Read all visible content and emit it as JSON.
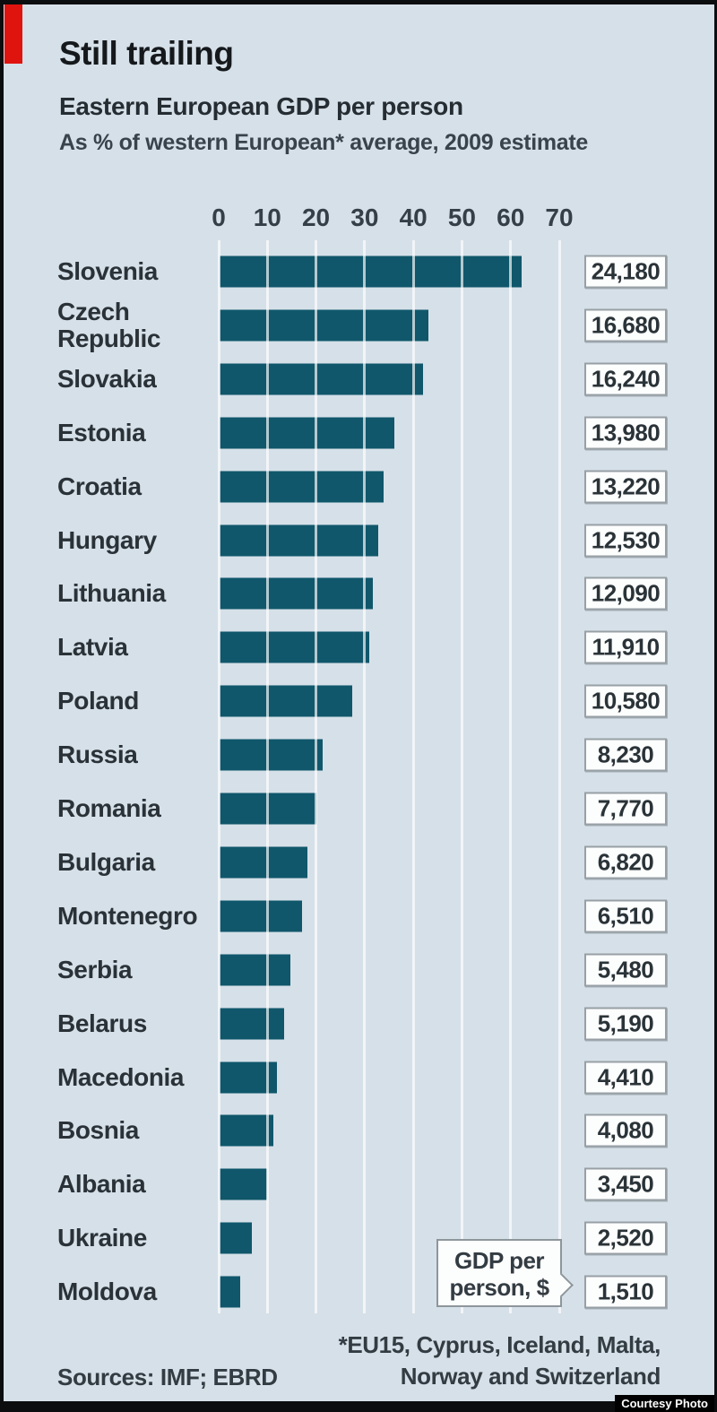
{
  "header": {
    "title": "Still trailing",
    "subtitle": "Eastern European GDP per person",
    "note": "As % of western European* average, 2009 estimate"
  },
  "chart_data": {
    "type": "bar",
    "orientation": "horizontal",
    "title": "Still trailing",
    "subtitle": "Eastern European GDP per person",
    "unit": "% of western European average, 2009 estimate",
    "xlim": [
      0,
      70
    ],
    "x_ticks": [
      0,
      10,
      20,
      30,
      40,
      50,
      60,
      70
    ],
    "grid": "on",
    "categories": [
      "Slovenia",
      "Czech Republic",
      "Slovakia",
      "Estonia",
      "Croatia",
      "Hungary",
      "Lithuania",
      "Latvia",
      "Poland",
      "Russia",
      "Romania",
      "Bulgaria",
      "Montenegro",
      "Serbia",
      "Belarus",
      "Macedonia",
      "Bosnia",
      "Albania",
      "Ukraine",
      "Moldova"
    ],
    "values_pct_of_western_avg": [
      62,
      43,
      41.8,
      36,
      33.8,
      32.6,
      31.5,
      30.7,
      27.2,
      21.2,
      19.9,
      18,
      16.9,
      14.5,
      13.3,
      11.8,
      11,
      9.8,
      6.6,
      4.3
    ],
    "gdp_per_person_usd": [
      "24,180",
      "16,680",
      "16,240",
      "13,980",
      "13,220",
      "12,530",
      "12,090",
      "11,910",
      "10,580",
      "8,230",
      "7,770",
      "6,820",
      "6,510",
      "5,480",
      "5,190",
      "4,410",
      "4,080",
      "3,450",
      "2,520",
      "1,510"
    ],
    "callout": {
      "line1": "GDP per",
      "line2": "person, $"
    }
  },
  "footer": {
    "sources": "Sources: IMF; EBRD",
    "footnote_line1": "*EU15, Cyprus, Iceland, Malta,",
    "footnote_line2": "Norway and Switzerland",
    "credit": "Courtesy Photo"
  },
  "colors": {
    "background": "#d6e0e8",
    "bar": "#10576b",
    "accent_red": "#e0140f",
    "frame": "#0b0d0e",
    "gridline": "#ffffff",
    "value_box_bg": "#fcfdfd",
    "value_box_border": "#97a0a5"
  }
}
